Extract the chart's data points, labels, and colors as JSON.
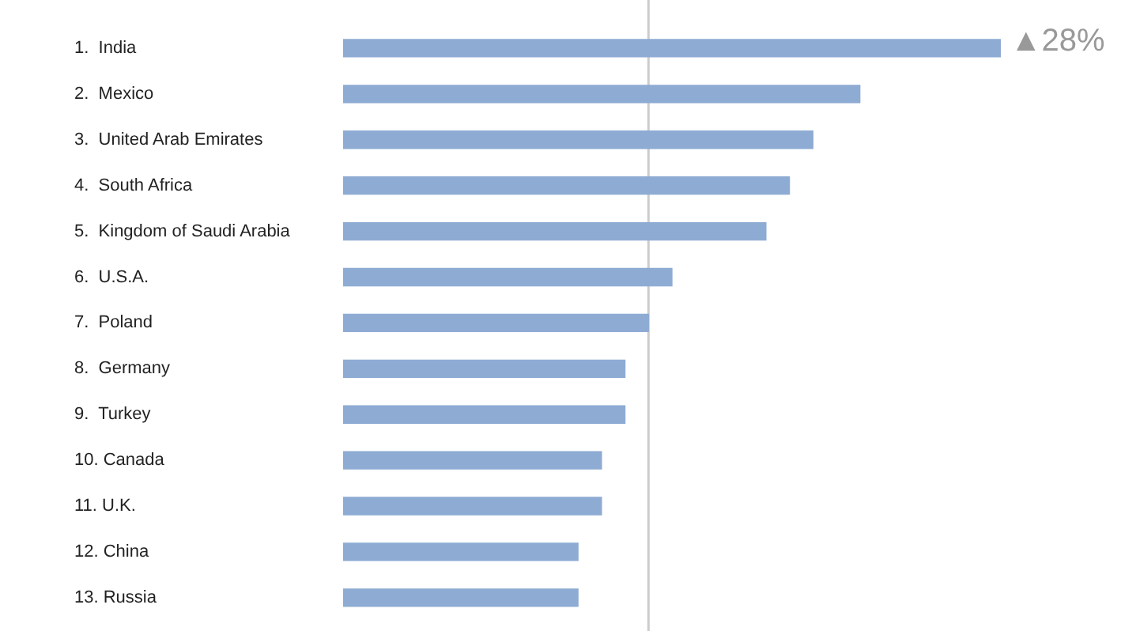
{
  "chart_data": {
    "type": "bar",
    "orientation": "horizontal",
    "categories": [
      "1.  India",
      "2.  Mexico",
      "3.  United Arab Emirates",
      "4.  South Africa",
      "5.  Kingdom of Saudi Arabia",
      "6.  U.S.A.",
      "7.  Poland",
      "8.  Germany",
      "9.  Turkey",
      "10. Canada",
      "11. U.K.",
      "12. China",
      "13. Russia"
    ],
    "values": [
      28,
      22,
      20,
      19,
      18,
      14,
      13,
      12,
      12,
      11,
      11,
      10,
      10
    ],
    "value_labels": [
      "▲28%",
      null,
      null,
      null,
      null,
      null,
      null,
      null,
      null,
      null,
      null,
      null,
      null
    ],
    "color": "#8eabd3",
    "ref_lines": [
      {
        "axis": "x",
        "value": 13,
        "color": "#cccccc"
      }
    ],
    "tick_labels": "y"
  }
}
